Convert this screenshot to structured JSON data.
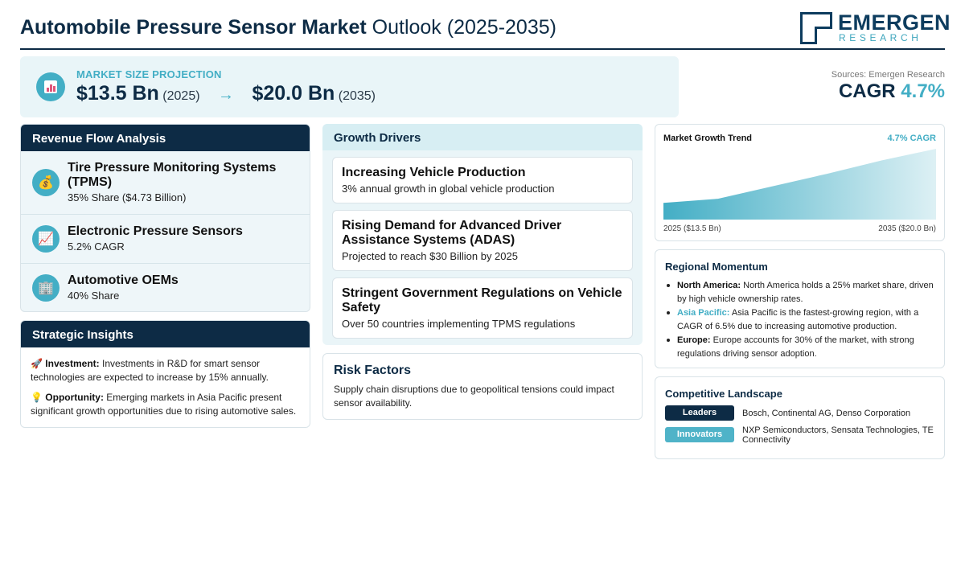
{
  "header": {
    "title_bold": "Automobile Pressure Sensor Market",
    "title_rest": " Outlook (2025-2035)",
    "logo_main": "EMERGEN",
    "logo_sub": "RESEARCH"
  },
  "projection": {
    "label": "MARKET SIZE PROJECTION",
    "start_value": "$13.5 Bn",
    "start_year": "(2025)",
    "arrow": "→",
    "end_value": "$20.0 Bn",
    "end_year": "(2035)",
    "icon": "bar-chart-icon"
  },
  "sources": "Sources: Emergen Research",
  "cagr": {
    "label": "CAGR",
    "value": "4.7%"
  },
  "revenue": {
    "title": "Revenue Flow Analysis",
    "items": [
      {
        "name": "Tire Pressure Monitoring Systems (TPMS)",
        "sub": "35% Share ($4.73 Billion)",
        "icon": "money-bag-icon",
        "glyph": "💰"
      },
      {
        "name": "Electronic Pressure Sensors",
        "sub": "5.2% CAGR",
        "icon": "chart-increasing-icon",
        "glyph": "📈"
      },
      {
        "name": "Automotive OEMs",
        "sub": "40% Share",
        "icon": "office-building-icon",
        "glyph": "🏢"
      }
    ]
  },
  "insights": {
    "title": "Strategic Insights",
    "items": [
      {
        "glyph": "🚀",
        "label": "Investment:",
        "text": " Investments in R&D for smart sensor technologies are expected to increase by 15% annually.",
        "icon": "rocket-icon"
      },
      {
        "glyph": "💡",
        "label": "Opportunity:",
        "text": " Emerging markets in Asia Pacific present significant growth opportunities due to rising automotive sales.",
        "icon": "light-bulb-icon"
      }
    ]
  },
  "drivers": {
    "title": "Growth Drivers",
    "items": [
      {
        "title": "Increasing Vehicle Production",
        "sub": "3% annual growth in global vehicle production"
      },
      {
        "title": "Rising Demand for Advanced Driver Assistance Systems (ADAS)",
        "sub": "Projected to reach $30 Billion by 2025"
      },
      {
        "title": "Stringent Government Regulations on Vehicle Safety",
        "sub": "Over 50 countries implementing TPMS regulations"
      }
    ]
  },
  "risk": {
    "title": "Risk Factors",
    "text": "Supply chain disruptions due to geopolitical tensions could impact sensor availability."
  },
  "trend": {
    "title": "Market Growth Trend",
    "cagr_label": "4.7% CAGR",
    "start_label": "2025 ($13.5 Bn)",
    "end_label": "2035 ($20.0 Bn)",
    "color": "#43aec5"
  },
  "chart_data": {
    "type": "area",
    "x": [
      2025,
      2027,
      2029,
      2031,
      2033,
      2035
    ],
    "values": [
      13.5,
      14.0,
      15.5,
      17.0,
      18.6,
      20.0
    ],
    "title": "Market Growth Trend",
    "xlabel": "",
    "ylabel": "",
    "ylim": [
      11.5,
      20.0
    ],
    "grid": false,
    "legend": "none"
  },
  "regional": {
    "title": "Regional Momentum",
    "items": [
      {
        "label": "North America:",
        "text": " North America holds a 25% market share, driven by high vehicle ownership rates.",
        "accent": false
      },
      {
        "label": "Asia Pacific:",
        "text": " Asia Pacific is the fastest-growing region, with a CAGR of 6.5% due to increasing automotive production.",
        "accent": true
      },
      {
        "label": "Europe:",
        "text": " Europe accounts for 30% of the market, with strong regulations driving sensor adoption.",
        "accent": false
      }
    ]
  },
  "competitive": {
    "title": "Competitive Landscape",
    "rows": [
      {
        "badge": "Leaders",
        "text": "Bosch, Continental AG, Denso Corporation"
      },
      {
        "badge": "Innovators",
        "text": "NXP Semiconductors, Sensata Technologies, TE Connectivity"
      }
    ]
  },
  "colors": {
    "navy": "#0d2b45",
    "teal": "#43aec5",
    "light_bg": "#e9f5f8"
  }
}
